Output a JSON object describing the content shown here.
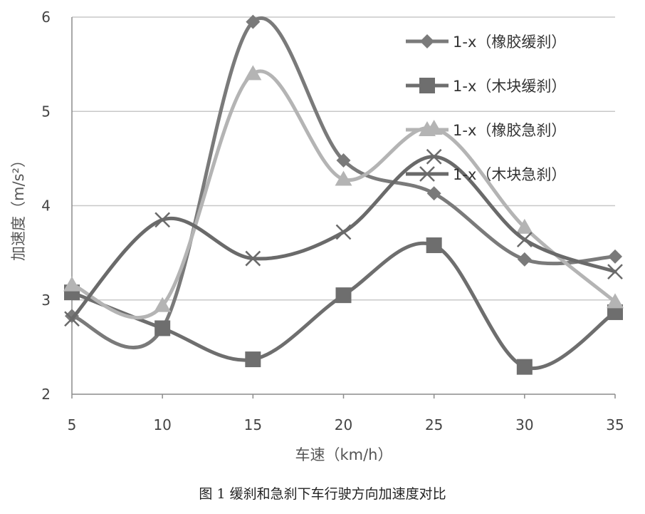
{
  "caption": "图 1 缓刹和急刹下车行驶方向加速度对比",
  "chart_data": {
    "type": "line",
    "xlabel": "车速（km/h）",
    "ylabel": "加速度（m/s²）",
    "x": [
      5,
      10,
      15,
      20,
      25,
      30,
      35
    ],
    "x_ticks": [
      "5",
      "10",
      "15",
      "20",
      "25",
      "30",
      "35"
    ],
    "y_ticks": [
      "2",
      "3",
      "4",
      "5",
      "6"
    ],
    "xlim": [
      5,
      35
    ],
    "ylim": [
      2,
      6
    ],
    "grid": "horizontal",
    "legend_position": "top-right",
    "series": [
      {
        "name": "1-x（橡胶缓刹）",
        "values": [
          2.83,
          2.7,
          5.95,
          4.48,
          4.13,
          3.43,
          3.46
        ],
        "color": "#7a7a7a",
        "marker": "diamond"
      },
      {
        "name": "1-x（木块缓刹）",
        "values": [
          3.08,
          2.7,
          2.37,
          3.05,
          3.58,
          2.29,
          2.87
        ],
        "color": "#6e6e6e",
        "marker": "square"
      },
      {
        "name": "1-x（橡胶急刹）",
        "values": [
          3.16,
          2.94,
          5.4,
          4.28,
          4.82,
          3.77,
          2.98
        ],
        "color": "#b4b4b4",
        "marker": "triangle"
      },
      {
        "name": "1-x（木块急刹）",
        "values": [
          2.8,
          3.85,
          3.44,
          3.72,
          4.52,
          3.64,
          3.3
        ],
        "color": "#6a6a6a",
        "marker": "x"
      }
    ]
  }
}
